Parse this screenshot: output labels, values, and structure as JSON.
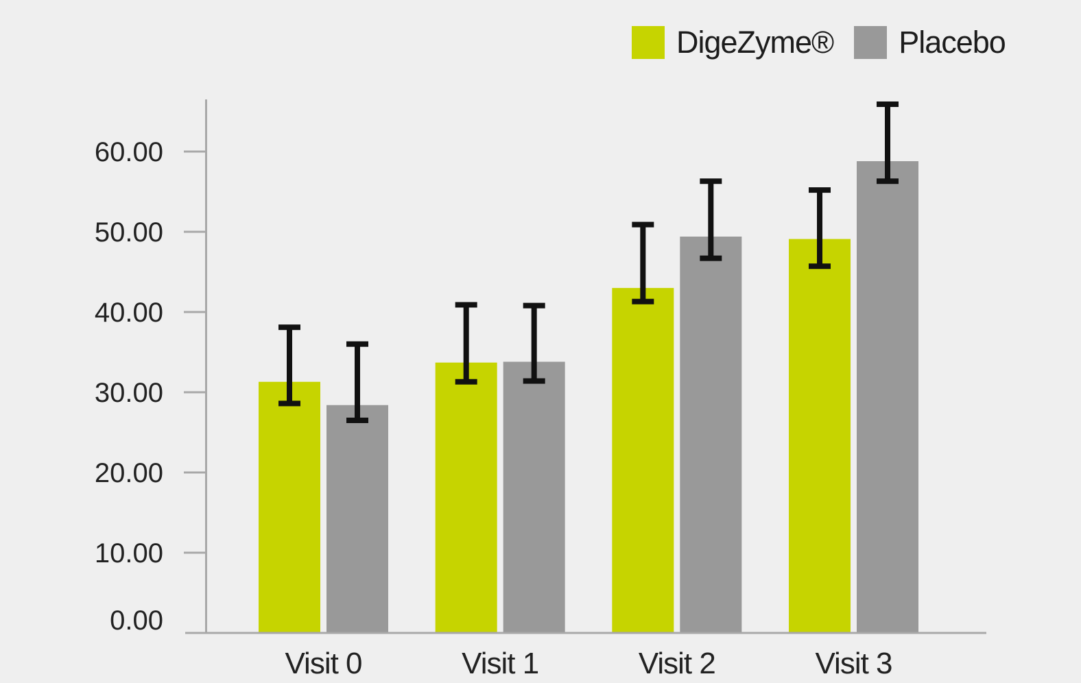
{
  "colors": {
    "background": "#efefef",
    "axis": "#a8a8a8",
    "error_bar": "#111111",
    "text": "#222222"
  },
  "legend": {
    "position": "top-right",
    "items": [
      {
        "label": "DigeZyme®",
        "color": "#c6d400"
      },
      {
        "label": "Placebo",
        "color": "#999999"
      }
    ]
  },
  "chart_data": {
    "type": "bar",
    "title": "",
    "xlabel": "",
    "ylabel": "",
    "categories": [
      "Visit 0",
      "Visit 1",
      "Visit 2",
      "Visit 3"
    ],
    "series": [
      {
        "name": "DigeZyme®",
        "color": "#c6d400",
        "values": [
          31.3,
          33.7,
          43.0,
          49.1
        ],
        "error_low": [
          28.6,
          31.3,
          41.3,
          45.7
        ],
        "error_high": [
          38.1,
          40.9,
          50.9,
          55.2
        ]
      },
      {
        "name": "Placebo",
        "color": "#999999",
        "values": [
          28.4,
          33.8,
          49.4,
          58.8
        ],
        "error_low": [
          26.5,
          31.4,
          46.7,
          56.3
        ],
        "error_high": [
          36.0,
          40.8,
          56.3,
          65.9
        ]
      }
    ],
    "yticks": [
      0,
      10,
      20,
      30,
      40,
      50,
      60
    ],
    "ytick_labels": [
      "0.00",
      "10.00",
      "20.00",
      "30.00",
      "40.00",
      "50.00",
      "60.00"
    ],
    "ylim": [
      0,
      66.5
    ],
    "grid": false,
    "error_bars": true,
    "legend_position": "top-right"
  }
}
